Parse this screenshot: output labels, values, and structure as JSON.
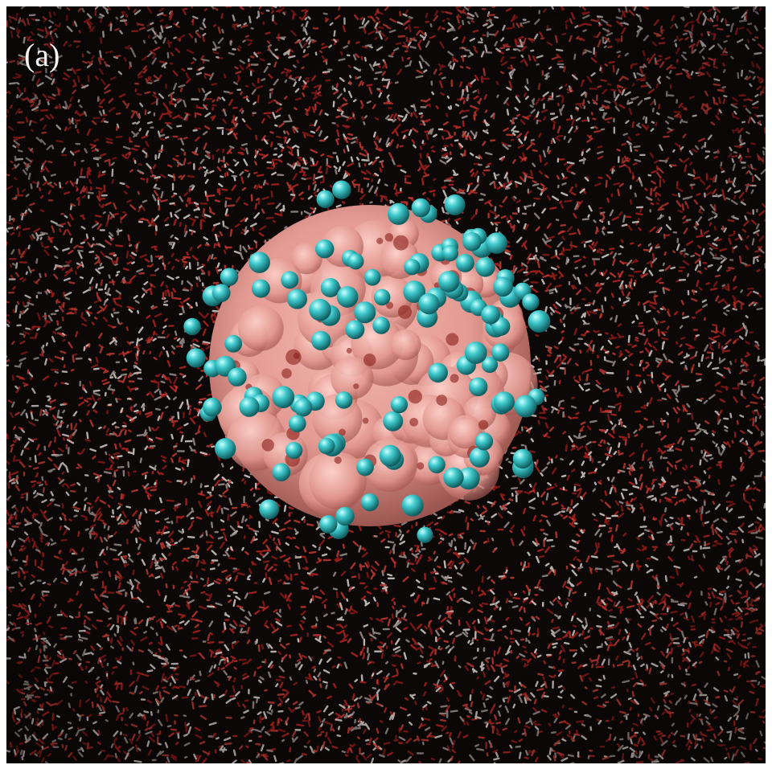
{
  "panel": {
    "label": "(a)"
  }
}
